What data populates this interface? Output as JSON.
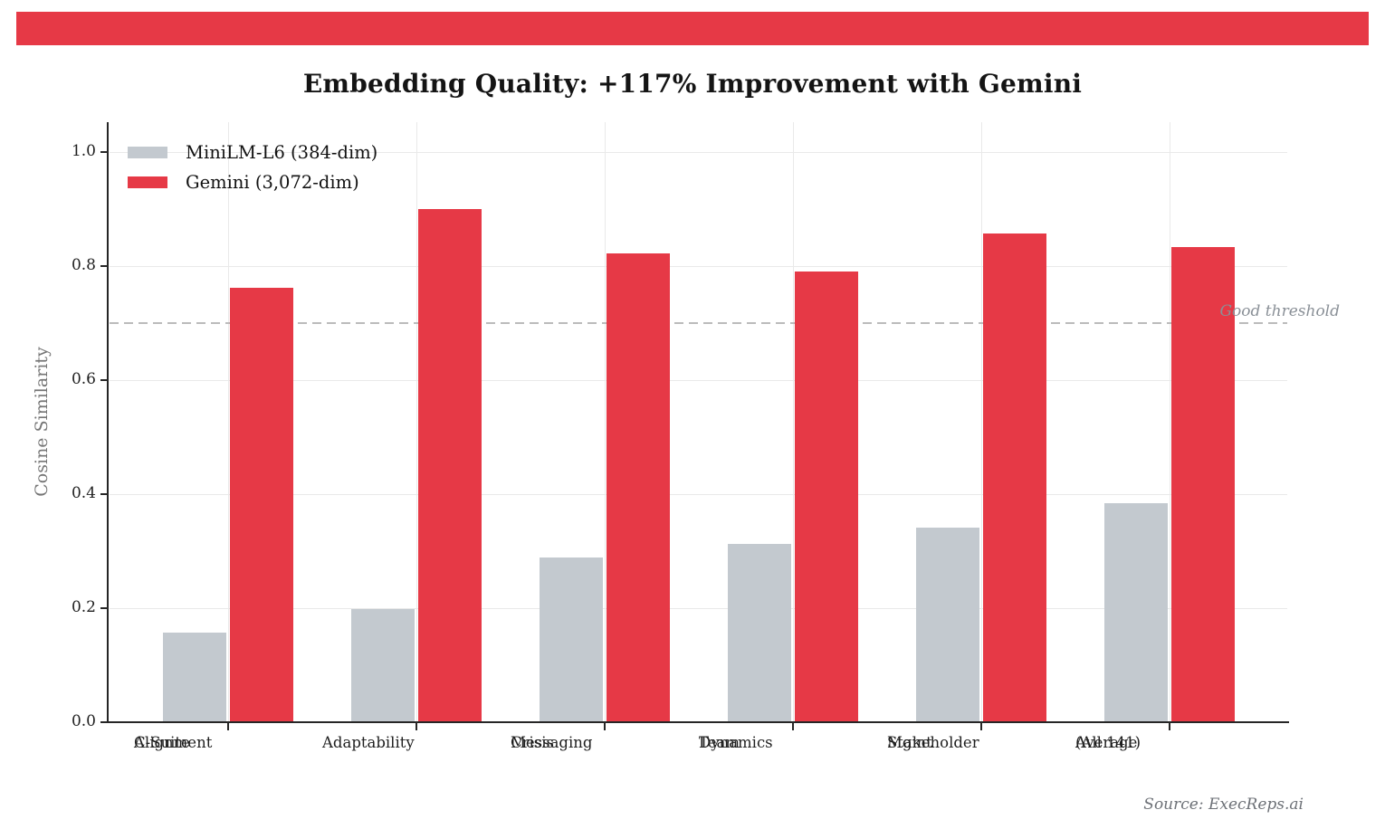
{
  "banner": {
    "color": "#e63946"
  },
  "title": "Embedding Quality: +117% Improvement with Gemini",
  "chart_data": {
    "type": "bar",
    "categories": [
      [
        "C-Suite",
        "Alignment"
      ],
      [
        "Adaptability"
      ],
      [
        "Crisis",
        "Messaging"
      ],
      [
        "Team",
        "Dynamics"
      ],
      [
        "Stakeholder",
        "Mgmt"
      ],
      [
        "Average",
        "(All 141)"
      ]
    ],
    "series": [
      {
        "name": "MiniLM-L6 (384-dim)",
        "color": "#c3c9cf",
        "values": [
          0.155,
          0.197,
          0.287,
          0.311,
          0.34,
          0.383
        ]
      },
      {
        "name": "Gemini (3,072-dim)",
        "color": "#e63946",
        "values": [
          0.761,
          0.898,
          0.821,
          0.789,
          0.855,
          0.831
        ]
      }
    ],
    "xlabel": "",
    "ylabel": "Cosine Similarity",
    "ylim": [
      0,
      1.05
    ],
    "yticks": [
      0.0,
      0.2,
      0.4,
      0.6,
      0.8,
      1.0
    ],
    "ytick_labels": [
      "0.0",
      "0.2",
      "0.4",
      "0.6",
      "0.8",
      "1.0"
    ],
    "grid": true,
    "legend_position": "upper-left",
    "threshold": {
      "value": 0.7,
      "label": "Good threshold"
    }
  },
  "source": "Source: ExecReps.ai",
  "colors": {
    "accent_red": "#e63946",
    "bar_gray": "#c3c9cf",
    "gridline": "#e9e9e9",
    "spine": "#262626",
    "threshold_line": "#bbbbbb",
    "muted_text": "#8a9097",
    "ylabel_text": "#757575",
    "source_text": "#6d7177"
  }
}
